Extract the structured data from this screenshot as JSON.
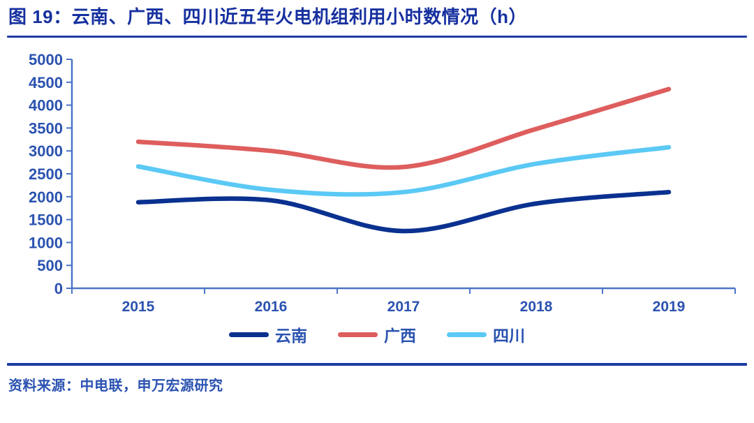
{
  "title": "图 19：云南、广西、四川近五年火电机组利用小时数情况（h）",
  "footer": {
    "source": "资料来源：中电联，申万宏源研究"
  },
  "colors": {
    "brand_blue": "#1D3BA3",
    "title_blue": "#16309F",
    "label_blue": "#2A52B0",
    "axis_line_blue": "#4C74C8"
  },
  "chart_data": {
    "type": "line",
    "title": "云南、广西、四川近五年火电机组利用小时数情况（h）",
    "categories": [
      "2015",
      "2016",
      "2017",
      "2018",
      "2019"
    ],
    "series": [
      {
        "name": "云南",
        "key": "yunnan",
        "color": "#0A3190",
        "values": [
          1880,
          1920,
          1250,
          1850,
          2100
        ]
      },
      {
        "name": "广西",
        "key": "guangxi",
        "color": "#DE5E5E",
        "values": [
          3200,
          3000,
          2650,
          3480,
          4350
        ]
      },
      {
        "name": "四川",
        "key": "sichuan",
        "color": "#5BC9F5",
        "values": [
          2660,
          2150,
          2100,
          2720,
          3080
        ]
      }
    ],
    "xlabel": "",
    "ylabel": "",
    "ylim": [
      0,
      5000
    ],
    "yticks": [
      0,
      500,
      1000,
      1500,
      2000,
      2500,
      3000,
      3500,
      4000,
      4500,
      5000
    ],
    "grid": false,
    "smooth": true,
    "legend_position": "bottom"
  }
}
